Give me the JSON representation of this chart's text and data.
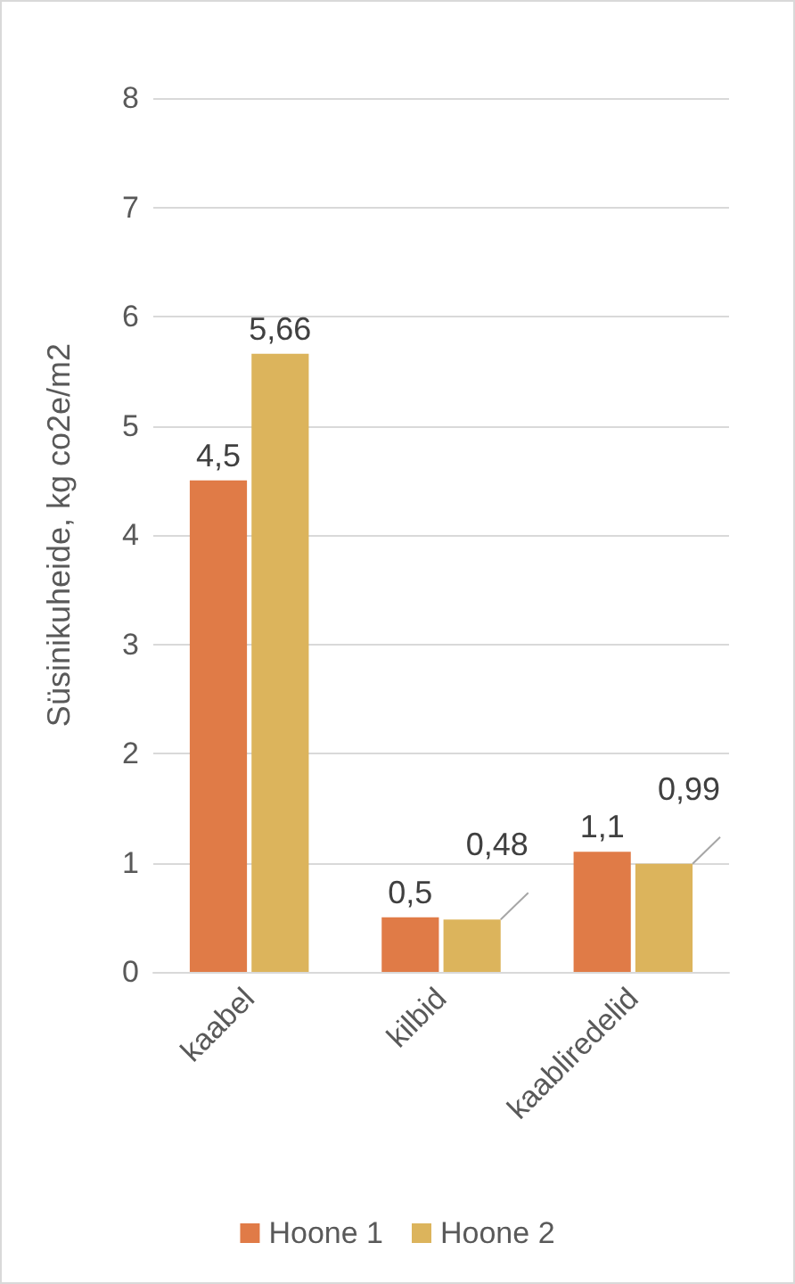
{
  "chart_data": {
    "type": "bar",
    "categories": [
      "kaabel",
      "kilbid",
      "kaabliredelid"
    ],
    "ylabel": "Süsinikuheide, kg co2e/m2",
    "series": [
      {
        "name": "Hoone 1",
        "color": "#e07b47",
        "values": [
          4.5,
          0.5,
          1.1
        ],
        "value_labels": [
          "4,5",
          "0,5",
          "1,1"
        ]
      },
      {
        "name": "Hoone 2",
        "color": "#dcb45c",
        "values": [
          5.66,
          0.48,
          0.99
        ],
        "value_labels": [
          "5,66",
          "0,48",
          "0,99"
        ]
      }
    ],
    "ylim": [
      0,
      8
    ],
    "yticks": [
      0,
      1,
      2,
      3,
      4,
      5,
      6,
      7,
      8
    ],
    "grid": "y",
    "legend": "bottom"
  }
}
